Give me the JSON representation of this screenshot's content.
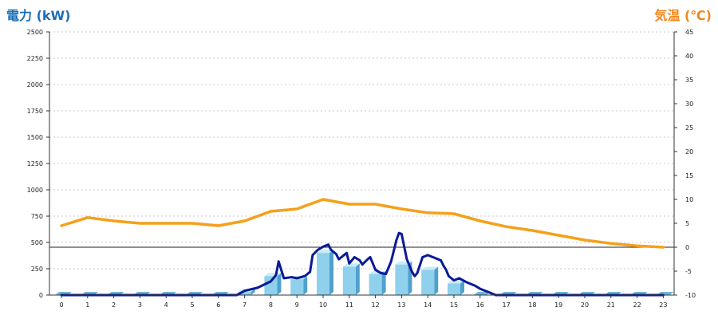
{
  "chart_data": {
    "type": "bar+line",
    "left_title": "電力 (kW)",
    "right_title": "気温 (℃)",
    "x_ticks": [
      "0",
      "1",
      "2",
      "3",
      "4",
      "5",
      "6",
      "7",
      "8",
      "9",
      "10",
      "11",
      "12",
      "13",
      "14",
      "15",
      "16",
      "17",
      "18",
      "19",
      "20",
      "21",
      "22",
      "23"
    ],
    "y_left": {
      "min": 0,
      "max": 2500,
      "ticks": [
        0,
        250,
        500,
        750,
        1000,
        1250,
        1500,
        1750,
        2000,
        2250,
        2500
      ]
    },
    "y_right": {
      "min": -10,
      "max": 45,
      "ticks": [
        -10,
        -5,
        0,
        5,
        10,
        15,
        20,
        25,
        30,
        35,
        40,
        45
      ]
    },
    "grid": true,
    "reference_line": {
      "axis": "right",
      "value": 0
    },
    "bars": {
      "name": "hourly power",
      "values": [
        0,
        0,
        0,
        0,
        0,
        0,
        0,
        30,
        180,
        150,
        400,
        270,
        200,
        290,
        240,
        110,
        0,
        0,
        0,
        0,
        0,
        0,
        0,
        0
      ]
    },
    "power_line": {
      "name": "power",
      "points": [
        [
          0,
          0
        ],
        [
          1,
          0
        ],
        [
          2,
          0
        ],
        [
          3,
          0
        ],
        [
          4,
          0
        ],
        [
          5,
          0
        ],
        [
          6,
          0
        ],
        [
          6.7,
          0
        ],
        [
          7,
          40
        ],
        [
          7.5,
          70
        ],
        [
          8,
          130
        ],
        [
          8.2,
          190
        ],
        [
          8.3,
          320
        ],
        [
          8.5,
          160
        ],
        [
          8.8,
          170
        ],
        [
          9,
          160
        ],
        [
          9.3,
          180
        ],
        [
          9.5,
          220
        ],
        [
          9.6,
          380
        ],
        [
          9.8,
          430
        ],
        [
          10,
          460
        ],
        [
          10.1,
          470
        ],
        [
          10.2,
          480
        ],
        [
          10.3,
          430
        ],
        [
          10.5,
          390
        ],
        [
          10.6,
          340
        ],
        [
          10.8,
          380
        ],
        [
          10.9,
          400
        ],
        [
          11,
          300
        ],
        [
          11.2,
          360
        ],
        [
          11.4,
          330
        ],
        [
          11.5,
          290
        ],
        [
          11.7,
          340
        ],
        [
          11.8,
          360
        ],
        [
          12,
          240
        ],
        [
          12.2,
          210
        ],
        [
          12.4,
          200
        ],
        [
          12.6,
          320
        ],
        [
          12.8,
          520
        ],
        [
          12.9,
          590
        ],
        [
          13,
          580
        ],
        [
          13.2,
          340
        ],
        [
          13.4,
          220
        ],
        [
          13.5,
          180
        ],
        [
          13.6,
          210
        ],
        [
          13.8,
          360
        ],
        [
          14,
          380
        ],
        [
          14.2,
          360
        ],
        [
          14.5,
          330
        ],
        [
          14.6,
          280
        ],
        [
          14.7,
          240
        ],
        [
          14.8,
          180
        ],
        [
          14.9,
          160
        ],
        [
          15,
          140
        ],
        [
          15.2,
          160
        ],
        [
          15.5,
          120
        ],
        [
          15.8,
          90
        ],
        [
          16,
          60
        ],
        [
          16.3,
          30
        ],
        [
          16.6,
          0
        ],
        [
          17,
          0
        ],
        [
          18,
          0
        ],
        [
          19,
          0
        ],
        [
          20,
          0
        ],
        [
          21,
          0
        ],
        [
          22,
          0
        ],
        [
          23,
          0
        ]
      ]
    },
    "temperature": {
      "name": "temperature",
      "values": [
        4.5,
        6.2,
        5.5,
        5.0,
        5.0,
        5.0,
        4.5,
        5.5,
        7.5,
        8.0,
        10.0,
        9.0,
        9.0,
        8.0,
        7.2,
        7.0,
        5.5,
        4.3,
        3.5,
        2.5,
        1.5,
        0.8,
        0.3,
        0.0
      ]
    },
    "colors": {
      "title_left": "#1c6fb6",
      "title_right": "#f0861e",
      "temperature_line": "#f5a01a",
      "power_line": "#0a1a96",
      "bar_front": "#8fd0ec",
      "bar_side": "#4fa0cc",
      "bar_top": "#c8ecf8",
      "zero_bar": "#6bb4d8"
    }
  }
}
